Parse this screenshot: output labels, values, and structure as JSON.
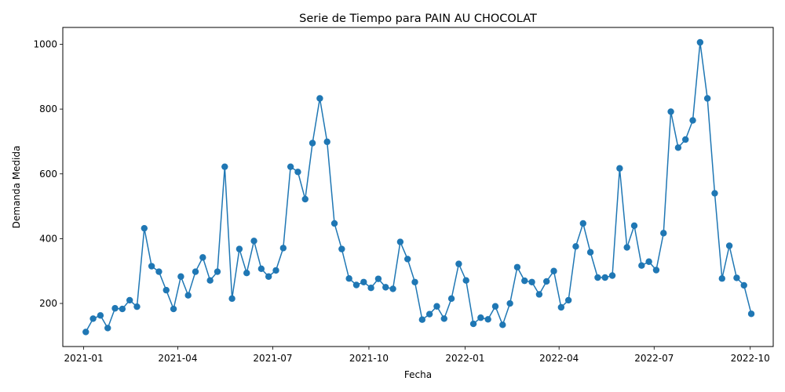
{
  "chart_data": {
    "type": "line",
    "title": "Serie de Tiempo para PAIN AU CHOCOLAT",
    "xlabel": "Fecha",
    "ylabel": "Demanda Medida",
    "x_range": [
      "2020-12-12",
      "2022-10-23"
    ],
    "ylim": [
      67,
      1052
    ],
    "x_ticks": [
      "2021-01",
      "2021-04",
      "2021-07",
      "2021-10",
      "2022-01",
      "2022-04",
      "2022-07",
      "2022-10"
    ],
    "y_ticks": [
      200,
      400,
      600,
      800,
      1000
    ],
    "grid": false,
    "legend": "none",
    "color": "#1f77b4",
    "marker": "circle",
    "series": [
      {
        "x": [
          "2021-01-03",
          "2021-01-10",
          "2021-01-17",
          "2021-01-24",
          "2021-01-31",
          "2021-02-07",
          "2021-02-14",
          "2021-02-21",
          "2021-02-28",
          "2021-03-07",
          "2021-03-14",
          "2021-03-21",
          "2021-03-28",
          "2021-04-04",
          "2021-04-11",
          "2021-04-18",
          "2021-04-25",
          "2021-05-02",
          "2021-05-09",
          "2021-05-16",
          "2021-05-23",
          "2021-05-30",
          "2021-06-06",
          "2021-06-13",
          "2021-06-20",
          "2021-06-27",
          "2021-07-04",
          "2021-07-11",
          "2021-07-18",
          "2021-07-25",
          "2021-08-01",
          "2021-08-08",
          "2021-08-15",
          "2021-08-22",
          "2021-08-29",
          "2021-09-05",
          "2021-09-12",
          "2021-09-19",
          "2021-09-26",
          "2021-10-03",
          "2021-10-10",
          "2021-10-17",
          "2021-10-24",
          "2021-10-31",
          "2021-11-07",
          "2021-11-14",
          "2021-11-21",
          "2021-11-28",
          "2021-12-05",
          "2021-12-12",
          "2021-12-19",
          "2021-12-26",
          "2022-01-02",
          "2022-01-09",
          "2022-01-16",
          "2022-01-23",
          "2022-01-30",
          "2022-02-06",
          "2022-02-13",
          "2022-02-20",
          "2022-02-27",
          "2022-03-06",
          "2022-03-13",
          "2022-03-20",
          "2022-03-27",
          "2022-04-03",
          "2022-04-10",
          "2022-04-17",
          "2022-04-24",
          "2022-05-01",
          "2022-05-08",
          "2022-05-15",
          "2022-05-22",
          "2022-05-29",
          "2022-06-05",
          "2022-06-12",
          "2022-06-19",
          "2022-06-26",
          "2022-07-03",
          "2022-07-10",
          "2022-07-17",
          "2022-07-24",
          "2022-07-31",
          "2022-08-07",
          "2022-08-14",
          "2022-08-21",
          "2022-08-28",
          "2022-09-04",
          "2022-09-11",
          "2022-09-18",
          "2022-09-25",
          "2022-10-02"
        ],
        "values": [
          112,
          153,
          163,
          124,
          185,
          183,
          210,
          190,
          432,
          315,
          298,
          241,
          183,
          283,
          225,
          298,
          342,
          271,
          298,
          622,
          215,
          368,
          294,
          393,
          307,
          283,
          302,
          371,
          622,
          606,
          522,
          695,
          833,
          699,
          447,
          368,
          277,
          257,
          266,
          248,
          276,
          250,
          245,
          390,
          337,
          266,
          150,
          167,
          191,
          153,
          215,
          322,
          271,
          137,
          156,
          151,
          191,
          134,
          200,
          312,
          270,
          266,
          228,
          268,
          300,
          188,
          210,
          376,
          447,
          358,
          280,
          280,
          286,
          617,
          373,
          440,
          317,
          329,
          303,
          417,
          792,
          681,
          706,
          765,
          1006,
          833,
          540,
          277,
          378,
          279,
          256,
          168
        ]
      }
    ]
  }
}
